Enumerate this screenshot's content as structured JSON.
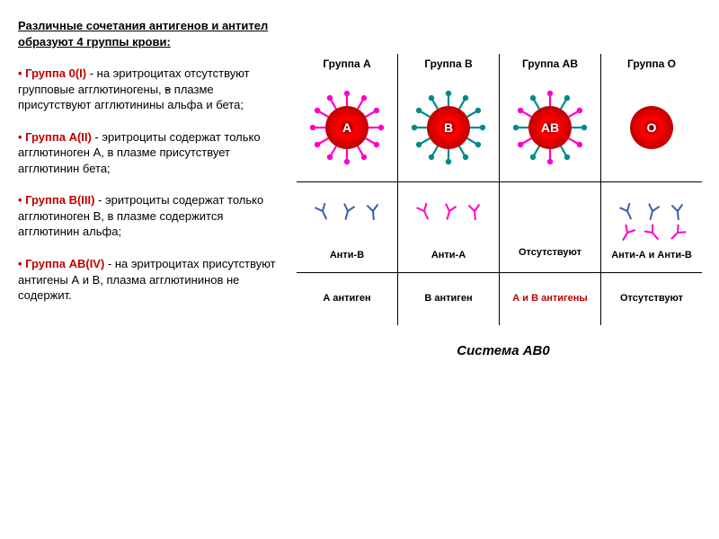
{
  "heading": "Различные сочетания антигенов и антител образуют 4 группы крови:",
  "items": [
    {
      "label": "• Группа 0(I)",
      "text_pre": " - на эритроцитах отсутствуют групповые агглютиногены, ",
      "strike": "в",
      "text_post": " плазме присутствуют агглютинины альфа и бета;"
    },
    {
      "label": "• Группа A(II)",
      "text_pre": " - эритроциты содержат только агглютиноген А, в плазме присутствует агглютинин бета;",
      "strike": "",
      "text_post": ""
    },
    {
      "label": "• Группа B(III)",
      "text_pre": " - эритроциты содержат только агглютиноген В, в плазме содержится агглютинин альфа;",
      "strike": "",
      "text_post": ""
    },
    {
      "label": "• Группа AB(IV)",
      "text_pre": " - на эритроцитах присутствуют антигены А и В, плазма агглютининов не содержит.",
      "strike": "",
      "text_post": ""
    }
  ],
  "columns": [
    {
      "header": "Группа А",
      "rbc_label": "A",
      "spike_a": 12,
      "spike_b": 0,
      "anti_a": 0,
      "anti_b": 3,
      "ab_label": "Анти-В",
      "ag_label": "А антиген",
      "ag_color": "#000000"
    },
    {
      "header": "Группа В",
      "rbc_label": "B",
      "spike_a": 0,
      "spike_b": 12,
      "anti_a": 3,
      "anti_b": 0,
      "ab_label": "Анти-А",
      "ag_label": "В антиген",
      "ag_color": "#000000"
    },
    {
      "header": "Группа АВ",
      "rbc_label": "AB",
      "spike_a": 6,
      "spike_b": 6,
      "anti_a": 0,
      "anti_b": 0,
      "ab_label": "Отсутствуют",
      "ag_label": "А и В антигены",
      "ag_color": "#c00000"
    },
    {
      "header": "Группа О",
      "rbc_label": "O",
      "spike_a": 0,
      "spike_b": 0,
      "anti_a": 3,
      "anti_b": 3,
      "ab_label": "Анти-А и Анти-В",
      "ag_label": "Отсутствуют",
      "ag_color": "#000000"
    }
  ],
  "system_label": "Система АВ0",
  "colors": {
    "spike_a": "#ff00c8",
    "spike_b": "#008a8a",
    "rbc_outer": "#c00000",
    "rbc_inner": "#6b0000",
    "rbc_mid": "#ff0000",
    "anti_a": "#ff00c8",
    "anti_b": "#3a5fa8",
    "text": "#ffffff"
  }
}
